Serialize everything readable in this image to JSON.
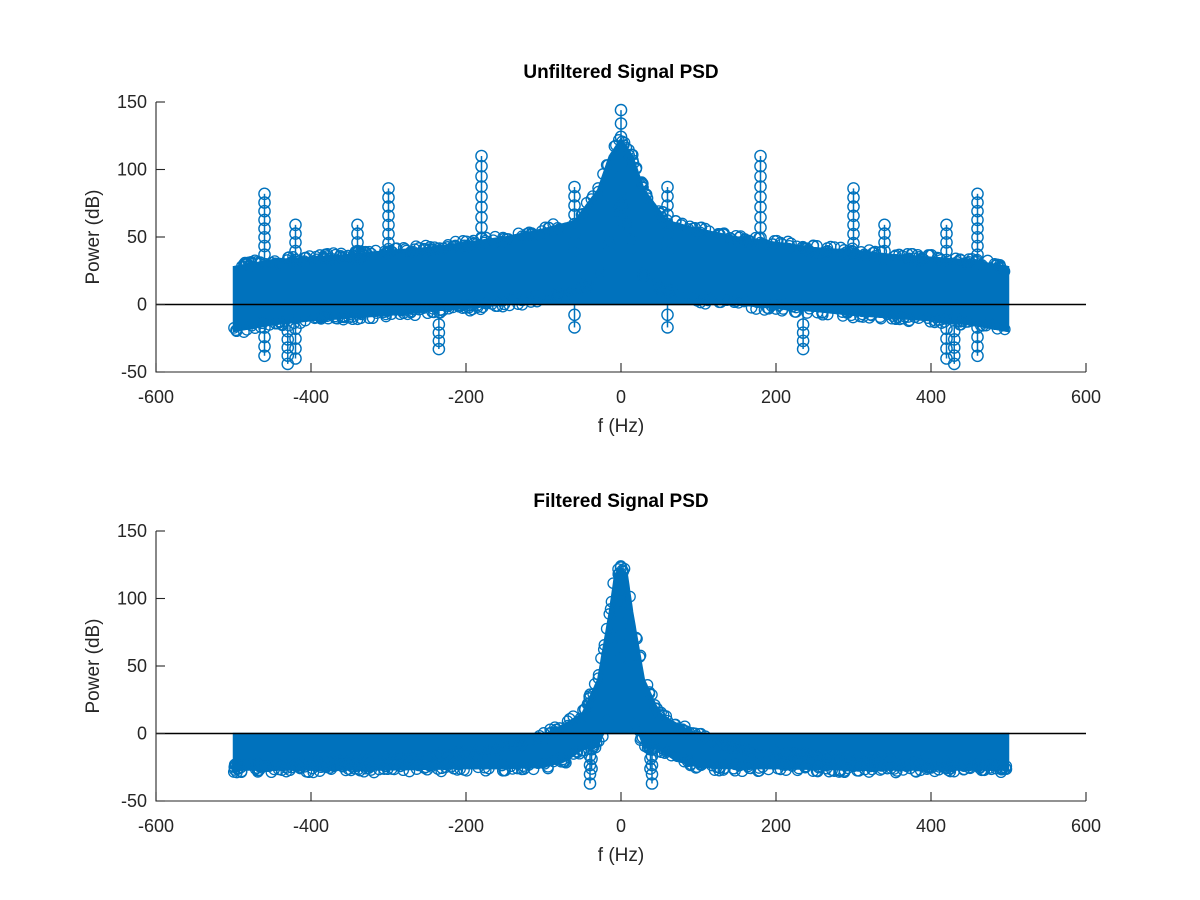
{
  "figure": {
    "colors": {
      "series": "#0072BD",
      "axis": "#262626",
      "zero_line": "#000000",
      "background": "#ffffff"
    }
  },
  "chart_data": [
    {
      "type": "stem",
      "title": "Unfiltered Signal PSD",
      "xlabel": "f (Hz)",
      "ylabel": "Power (dB)",
      "xlim": [
        -600,
        600
      ],
      "ylim": [
        -50,
        150
      ],
      "xticks": [
        -600,
        -400,
        -200,
        0,
        200,
        400,
        600
      ],
      "yticks": [
        -50,
        0,
        50,
        100,
        150
      ],
      "x_range_of_stems": [
        -500,
        500
      ],
      "baseline": 0,
      "grid": false,
      "legend": "none",
      "series": [
        {
          "marker": "circle",
          "envelope": {
            "f": [
              -500,
              -450,
              -400,
              -350,
              -300,
              -250,
              -200,
              -150,
              -100,
              -60,
              -30,
              -15,
              0,
              15,
              30,
              60,
              100,
              150,
              200,
              250,
              300,
              350,
              400,
              450,
              500
            ],
            "upper": [
              28,
              33,
              35,
              37,
              40,
              42,
              46,
              50,
              56,
              62,
              85,
              110,
              123,
              110,
              85,
              62,
              56,
              50,
              46,
              42,
              40,
              37,
              35,
              33,
              28
            ],
            "lower": [
              -20,
              -15,
              -12,
              -10,
              -8,
              -5,
              -3,
              0,
              3,
              8,
              20,
              45,
              80,
              45,
              20,
              8,
              3,
              0,
              -3,
              -5,
              -8,
              -10,
              -12,
              -15,
              -20
            ]
          },
          "peaks": [
            {
              "f": 0,
              "value": 144
            },
            {
              "f": -180,
              "value": 110
            },
            {
              "f": 180,
              "value": 110
            },
            {
              "f": -460,
              "value": 82
            },
            {
              "f": 460,
              "value": 82
            },
            {
              "f": -300,
              "value": 86
            },
            {
              "f": 300,
              "value": 86
            },
            {
              "f": -60,
              "value": 87
            },
            {
              "f": 60,
              "value": 87
            },
            {
              "f": -420,
              "value": 59
            },
            {
              "f": 420,
              "value": 59
            },
            {
              "f": -340,
              "value": 59
            },
            {
              "f": 340,
              "value": 59
            }
          ],
          "troughs": [
            {
              "f": -430,
              "value": -44
            },
            {
              "f": 430,
              "value": -44
            },
            {
              "f": -420,
              "value": -40
            },
            {
              "f": 420,
              "value": -40
            },
            {
              "f": -460,
              "value": -38
            },
            {
              "f": 460,
              "value": -38
            },
            {
              "f": -235,
              "value": -33
            },
            {
              "f": 235,
              "value": -33
            },
            {
              "f": -60,
              "value": -17
            },
            {
              "f": 60,
              "value": -17
            }
          ]
        }
      ]
    },
    {
      "type": "stem",
      "title": "Filtered Signal PSD",
      "xlabel": "f (Hz)",
      "ylabel": "Power (dB)",
      "xlim": [
        -600,
        600
      ],
      "ylim": [
        -50,
        150
      ],
      "xticks": [
        -600,
        -400,
        -200,
        0,
        200,
        400,
        600
      ],
      "yticks": [
        -50,
        0,
        50,
        100,
        150
      ],
      "x_range_of_stems": [
        -500,
        500
      ],
      "baseline": 0,
      "grid": false,
      "legend": "none",
      "series": [
        {
          "marker": "circle",
          "envelope": {
            "f": [
              -500,
              -400,
              -300,
              -200,
              -150,
              -100,
              -70,
              -50,
              -30,
              -15,
              -8,
              0,
              8,
              15,
              30,
              50,
              70,
              100,
              150,
              200,
              300,
              400,
              500
            ],
            "upper": [
              -24,
              -22,
              -19,
              -14,
              -9,
              -1,
              8,
              15,
              40,
              90,
              118,
              123,
              118,
              90,
              40,
              15,
              8,
              -1,
              -9,
              -14,
              -19,
              -22,
              -24
            ],
            "lower": [
              -27,
              -27,
              -27,
              -26,
              -26,
              -25,
              -20,
              -12,
              -10,
              10,
              70,
              110,
              70,
              10,
              -10,
              -12,
              -20,
              -25,
              -26,
              -26,
              -27,
              -27,
              -27
            ]
          },
          "peaks": [
            {
              "f": 0,
              "value": 123
            }
          ],
          "troughs": [
            {
              "f": -40,
              "value": -37
            },
            {
              "f": 40,
              "value": -37
            },
            {
              "f": -38,
              "value": -26
            },
            {
              "f": 38,
              "value": -26
            }
          ]
        }
      ]
    }
  ]
}
